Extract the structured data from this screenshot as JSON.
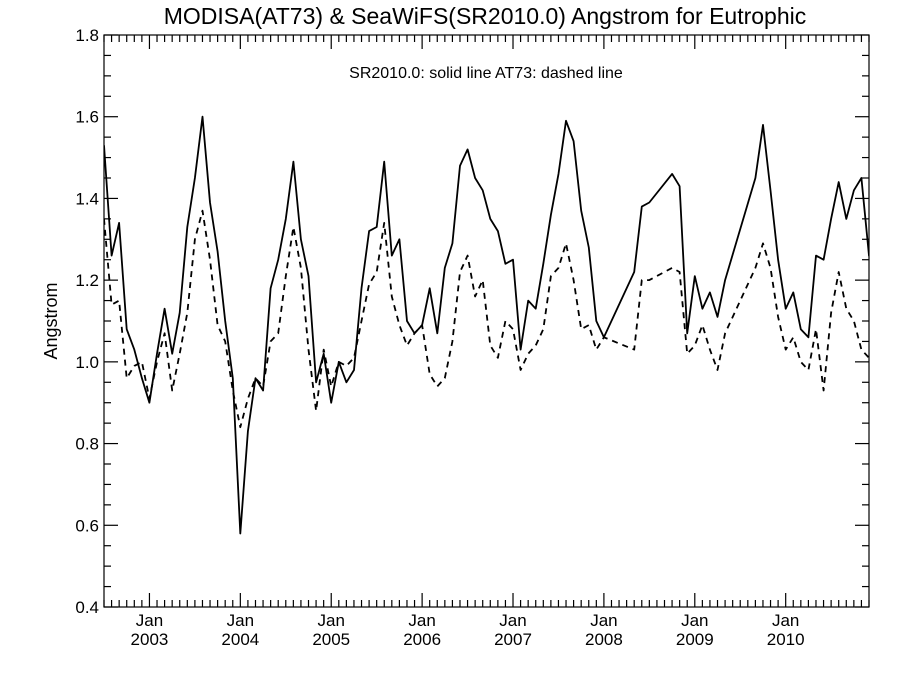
{
  "chart_data": {
    "type": "line",
    "title": "MODISA(AT73) & SeaWiFS(SR2010.0)  Angstrom for Eutrophic",
    "annotation": "SR2010.0: solid line   AT73: dashed line",
    "ylabel": "Angstrom",
    "xlabel": "",
    "ylim": [
      0.4,
      1.8
    ],
    "yticks": [
      "0.4",
      "0.6",
      "0.8",
      "1.0",
      "1.2",
      "1.4",
      "1.6",
      "1.8"
    ],
    "xlim": [
      "2002-07",
      "2010-12"
    ],
    "xticks": [
      {
        "month": "Jan",
        "year": "2003",
        "date": "2003-01"
      },
      {
        "month": "Jan",
        "year": "2004",
        "date": "2004-01"
      },
      {
        "month": "Jan",
        "year": "2005",
        "date": "2005-01"
      },
      {
        "month": "Jan",
        "year": "2006",
        "date": "2006-01"
      },
      {
        "month": "Jan",
        "year": "2007",
        "date": "2007-01"
      },
      {
        "month": "Jan",
        "year": "2008",
        "date": "2008-01"
      },
      {
        "month": "Jan",
        "year": "2009",
        "date": "2009-01"
      },
      {
        "month": "Jan",
        "year": "2010",
        "date": "2010-01"
      }
    ],
    "grid": false,
    "series": [
      {
        "line_style": "solid",
        "points": [
          [
            "2002-07",
            1.53
          ],
          [
            "2002-08",
            1.26
          ],
          [
            "2002-09",
            1.34
          ],
          [
            "2002-10",
            1.08
          ],
          [
            "2002-11",
            1.03
          ],
          [
            "2002-12",
            0.96
          ],
          [
            "2003-01",
            0.9
          ],
          [
            "2003-02",
            1.02
          ],
          [
            "2003-03",
            1.13
          ],
          [
            "2003-04",
            1.02
          ],
          [
            "2003-05",
            1.12
          ],
          [
            "2003-06",
            1.33
          ],
          [
            "2003-07",
            1.45
          ],
          [
            "2003-08",
            1.6
          ],
          [
            "2003-09",
            1.39
          ],
          [
            "2003-10",
            1.27
          ],
          [
            "2003-11",
            1.1
          ],
          [
            "2003-12",
            0.96
          ],
          [
            "2004-01",
            0.58
          ],
          [
            "2004-02",
            0.83
          ],
          [
            "2004-03",
            0.96
          ],
          [
            "2004-04",
            0.93
          ],
          [
            "2004-05",
            1.18
          ],
          [
            "2004-06",
            1.25
          ],
          [
            "2004-07",
            1.35
          ],
          [
            "2004-08",
            1.49
          ],
          [
            "2004-09",
            1.3
          ],
          [
            "2004-10",
            1.21
          ],
          [
            "2004-11",
            0.95
          ],
          [
            "2004-12",
            1.02
          ],
          [
            "2005-01",
            0.9
          ],
          [
            "2005-02",
            1.0
          ],
          [
            "2005-03",
            0.95
          ],
          [
            "2005-04",
            0.98
          ],
          [
            "2005-05",
            1.18
          ],
          [
            "2005-06",
            1.32
          ],
          [
            "2005-07",
            1.33
          ],
          [
            "2005-08",
            1.49
          ],
          [
            "2005-09",
            1.26
          ],
          [
            "2005-10",
            1.3
          ],
          [
            "2005-11",
            1.1
          ],
          [
            "2005-12",
            1.07
          ],
          [
            "2006-01",
            1.09
          ],
          [
            "2006-02",
            1.18
          ],
          [
            "2006-03",
            1.07
          ],
          [
            "2006-04",
            1.23
          ],
          [
            "2006-05",
            1.29
          ],
          [
            "2006-06",
            1.48
          ],
          [
            "2006-07",
            1.52
          ],
          [
            "2006-08",
            1.45
          ],
          [
            "2006-09",
            1.42
          ],
          [
            "2006-10",
            1.35
          ],
          [
            "2006-11",
            1.32
          ],
          [
            "2006-12",
            1.24
          ],
          [
            "2007-01",
            1.25
          ],
          [
            "2007-02",
            1.03
          ],
          [
            "2007-03",
            1.15
          ],
          [
            "2007-04",
            1.13
          ],
          [
            "2007-05",
            1.24
          ],
          [
            "2007-06",
            1.36
          ],
          [
            "2007-07",
            1.46
          ],
          [
            "2007-08",
            1.59
          ],
          [
            "2007-09",
            1.54
          ],
          [
            "2007-10",
            1.37
          ],
          [
            "2007-11",
            1.28
          ],
          [
            "2007-12",
            1.1
          ],
          [
            "2008-01",
            1.06
          ],
          [
            "2008-05",
            1.22
          ],
          [
            "2008-06",
            1.38
          ],
          [
            "2008-07",
            1.39
          ],
          [
            "2008-10",
            1.46
          ],
          [
            "2008-11",
            1.43
          ],
          [
            "2008-12",
            1.07
          ],
          [
            "2009-01",
            1.21
          ],
          [
            "2009-02",
            1.13
          ],
          [
            "2009-03",
            1.17
          ],
          [
            "2009-04",
            1.11
          ],
          [
            "2009-05",
            1.2
          ],
          [
            "2009-09",
            1.45
          ],
          [
            "2009-10",
            1.58
          ],
          [
            "2009-11",
            1.42
          ],
          [
            "2009-12",
            1.25
          ],
          [
            "2010-01",
            1.13
          ],
          [
            "2010-02",
            1.17
          ],
          [
            "2010-03",
            1.08
          ],
          [
            "2010-04",
            1.06
          ],
          [
            "2010-05",
            1.26
          ],
          [
            "2010-06",
            1.25
          ],
          [
            "2010-07",
            1.35
          ],
          [
            "2010-08",
            1.44
          ],
          [
            "2010-09",
            1.35
          ],
          [
            "2010-10",
            1.42
          ],
          [
            "2010-11",
            1.45
          ],
          [
            "2010-12",
            1.26
          ],
          [
            "2011-01",
            1.29
          ]
        ]
      },
      {
        "line_style": "dashed",
        "points": [
          [
            "2002-07",
            1.35
          ],
          [
            "2002-08",
            1.14
          ],
          [
            "2002-09",
            1.15
          ],
          [
            "2002-10",
            0.96
          ],
          [
            "2002-11",
            0.99
          ],
          [
            "2002-12",
            1.0
          ],
          [
            "2003-01",
            0.91
          ],
          [
            "2003-02",
            1.0
          ],
          [
            "2003-03",
            1.07
          ],
          [
            "2003-04",
            0.93
          ],
          [
            "2003-05",
            1.02
          ],
          [
            "2003-06",
            1.12
          ],
          [
            "2003-07",
            1.3
          ],
          [
            "2003-08",
            1.37
          ],
          [
            "2003-09",
            1.25
          ],
          [
            "2003-10",
            1.09
          ],
          [
            "2003-11",
            1.05
          ],
          [
            "2003-12",
            0.93
          ],
          [
            "2004-01",
            0.84
          ],
          [
            "2004-02",
            0.91
          ],
          [
            "2004-03",
            0.96
          ],
          [
            "2004-04",
            0.94
          ],
          [
            "2004-05",
            1.05
          ],
          [
            "2004-06",
            1.07
          ],
          [
            "2004-07",
            1.21
          ],
          [
            "2004-08",
            1.33
          ],
          [
            "2004-09",
            1.23
          ],
          [
            "2004-10",
            1.03
          ],
          [
            "2004-11",
            0.88
          ],
          [
            "2004-12",
            1.03
          ],
          [
            "2005-01",
            0.94
          ],
          [
            "2005-02",
            1.0
          ],
          [
            "2005-03",
            0.99
          ],
          [
            "2005-04",
            1.01
          ],
          [
            "2005-05",
            1.1
          ],
          [
            "2005-06",
            1.19
          ],
          [
            "2005-07",
            1.22
          ],
          [
            "2005-08",
            1.34
          ],
          [
            "2005-09",
            1.16
          ],
          [
            "2005-10",
            1.09
          ],
          [
            "2005-11",
            1.04
          ],
          [
            "2005-12",
            1.07
          ],
          [
            "2006-01",
            1.09
          ],
          [
            "2006-02",
            0.97
          ],
          [
            "2006-03",
            0.94
          ],
          [
            "2006-04",
            0.96
          ],
          [
            "2006-05",
            1.05
          ],
          [
            "2006-06",
            1.22
          ],
          [
            "2006-07",
            1.26
          ],
          [
            "2006-08",
            1.16
          ],
          [
            "2006-09",
            1.2
          ],
          [
            "2006-10",
            1.04
          ],
          [
            "2006-11",
            1.01
          ],
          [
            "2006-12",
            1.1
          ],
          [
            "2007-01",
            1.08
          ],
          [
            "2007-02",
            0.98
          ],
          [
            "2007-03",
            1.02
          ],
          [
            "2007-04",
            1.04
          ],
          [
            "2007-05",
            1.08
          ],
          [
            "2007-06",
            1.21
          ],
          [
            "2007-07",
            1.23
          ],
          [
            "2007-08",
            1.29
          ],
          [
            "2007-09",
            1.2
          ],
          [
            "2007-10",
            1.08
          ],
          [
            "2007-11",
            1.09
          ],
          [
            "2007-12",
            1.03
          ],
          [
            "2008-01",
            1.06
          ],
          [
            "2008-05",
            1.03
          ],
          [
            "2008-06",
            1.2
          ],
          [
            "2008-07",
            1.2
          ],
          [
            "2008-10",
            1.23
          ],
          [
            "2008-11",
            1.22
          ],
          [
            "2008-12",
            1.02
          ],
          [
            "2009-01",
            1.04
          ],
          [
            "2009-02",
            1.09
          ],
          [
            "2009-03",
            1.03
          ],
          [
            "2009-04",
            0.98
          ],
          [
            "2009-05",
            1.07
          ],
          [
            "2009-09",
            1.23
          ],
          [
            "2009-10",
            1.29
          ],
          [
            "2009-11",
            1.23
          ],
          [
            "2009-12",
            1.11
          ],
          [
            "2010-01",
            1.03
          ],
          [
            "2010-02",
            1.06
          ],
          [
            "2010-03",
            1.0
          ],
          [
            "2010-04",
            0.98
          ],
          [
            "2010-05",
            1.08
          ],
          [
            "2010-06",
            0.93
          ],
          [
            "2010-07",
            1.12
          ],
          [
            "2010-08",
            1.22
          ],
          [
            "2010-09",
            1.13
          ],
          [
            "2010-10",
            1.1
          ],
          [
            "2010-11",
            1.03
          ],
          [
            "2010-12",
            1.01
          ],
          [
            "2011-01",
            1.08
          ]
        ]
      }
    ]
  }
}
